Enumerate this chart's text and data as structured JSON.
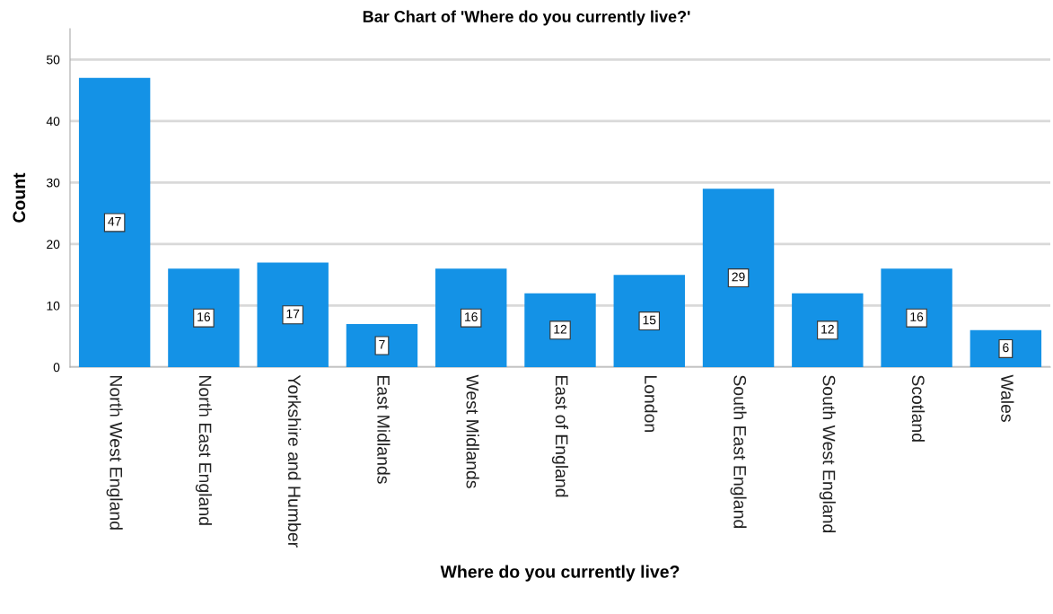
{
  "chart_data": {
    "type": "bar",
    "title": "Bar Chart of 'Where do you currently live?'",
    "xlabel": "Where do you currently live?",
    "ylabel": "Count",
    "categories": [
      "North West England",
      "North East England",
      "Yorkshire and Humber",
      "East Midlands",
      "West Midlands",
      "East of England",
      "London",
      "South East England",
      "South West England",
      "Scotland",
      "Wales"
    ],
    "values": [
      47,
      16,
      17,
      7,
      16,
      12,
      15,
      29,
      12,
      16,
      6
    ],
    "color": "#1492e6",
    "ylim": [
      0,
      55
    ],
    "yticks": [
      0,
      10,
      20,
      30,
      40,
      50
    ],
    "grid": "y",
    "data_labels": true
  }
}
